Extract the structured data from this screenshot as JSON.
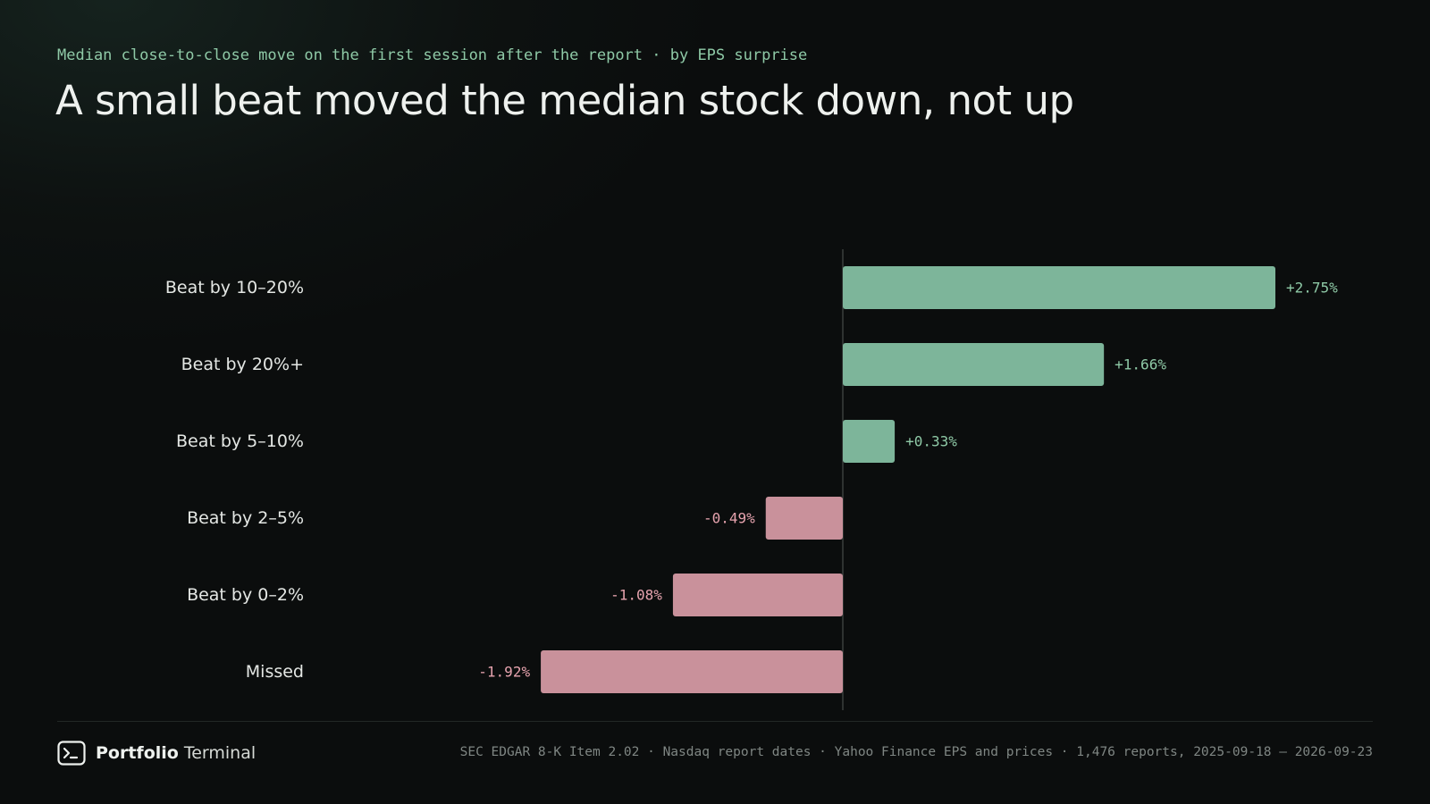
{
  "header": {
    "subtitle": "Median close-to-close move on the first session after the report · by EPS surprise",
    "title": "A small beat moved the median stock down, not up"
  },
  "colors": {
    "positive": "#7db59a",
    "negative": "#c9919b",
    "positive_label": "#8fcaa7",
    "negative_label": "#e6a3ae",
    "axis": "#3a3f3d"
  },
  "chart_data": {
    "type": "bar",
    "orientation": "horizontal",
    "categories": [
      "Beat by 10–20%",
      "Beat by 20%+",
      "Beat by 5–10%",
      "Beat by 2–5%",
      "Beat by 0–2%",
      "Missed"
    ],
    "values": [
      2.75,
      1.66,
      0.33,
      -0.49,
      -1.08,
      -1.92
    ],
    "value_labels": [
      "+2.75%",
      "+1.66%",
      "+0.33%",
      "-0.49%",
      "-1.08%",
      "-1.92%"
    ],
    "xlim": [
      -3.4,
      3.2
    ],
    "grid": false,
    "zero_line": true
  },
  "footer": {
    "brand_bold": "Portfolio",
    "brand_light": "Terminal",
    "brand_icon": "terminal-prompt-icon",
    "source": "SEC EDGAR 8-K Item 2.02 · Nasdaq report dates · Yahoo Finance EPS and prices · 1,476 reports, 2025-09-18 – 2026-09-23"
  }
}
